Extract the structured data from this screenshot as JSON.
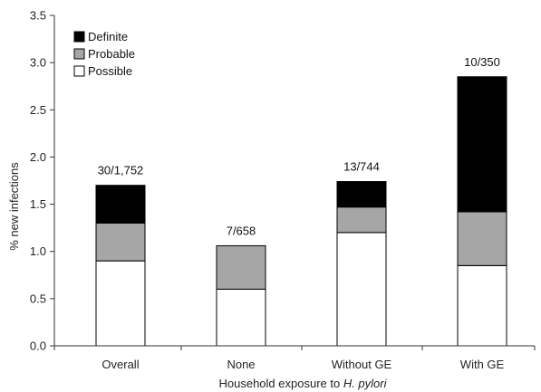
{
  "chart_data": {
    "type": "bar",
    "stacked": true,
    "categories": [
      "Overall",
      "None",
      "Without GE",
      "With GE"
    ],
    "series": [
      {
        "name": "Possible",
        "values": [
          0.9,
          0.6,
          1.2,
          0.85
        ],
        "color": "#ffffff"
      },
      {
        "name": "Probable",
        "values": [
          0.4,
          0.46,
          0.27,
          0.57
        ],
        "color": "#a6a6a6"
      },
      {
        "name": "Definite",
        "values": [
          0.4,
          0.0,
          0.27,
          1.43
        ],
        "color": "#000000"
      }
    ],
    "data_labels": [
      "30/1,752",
      "7/658",
      "13/744",
      "10/350"
    ],
    "xlabel": "Household exposure to ",
    "xlabel_italic": "H. pylori",
    "ylabel": "% new infections",
    "ylim": [
      0,
      3.5
    ],
    "yticks": [
      "0.0",
      "0.5",
      "1.0",
      "1.5",
      "2.0",
      "2.5",
      "3.0",
      "3.5"
    ],
    "ytick_values": [
      0,
      0.5,
      1.0,
      1.5,
      2.0,
      2.5,
      3.0,
      3.5
    ],
    "legend_order": [
      "Definite",
      "Probable",
      "Possible"
    ],
    "legend_position": "top-left",
    "grid": false
  }
}
